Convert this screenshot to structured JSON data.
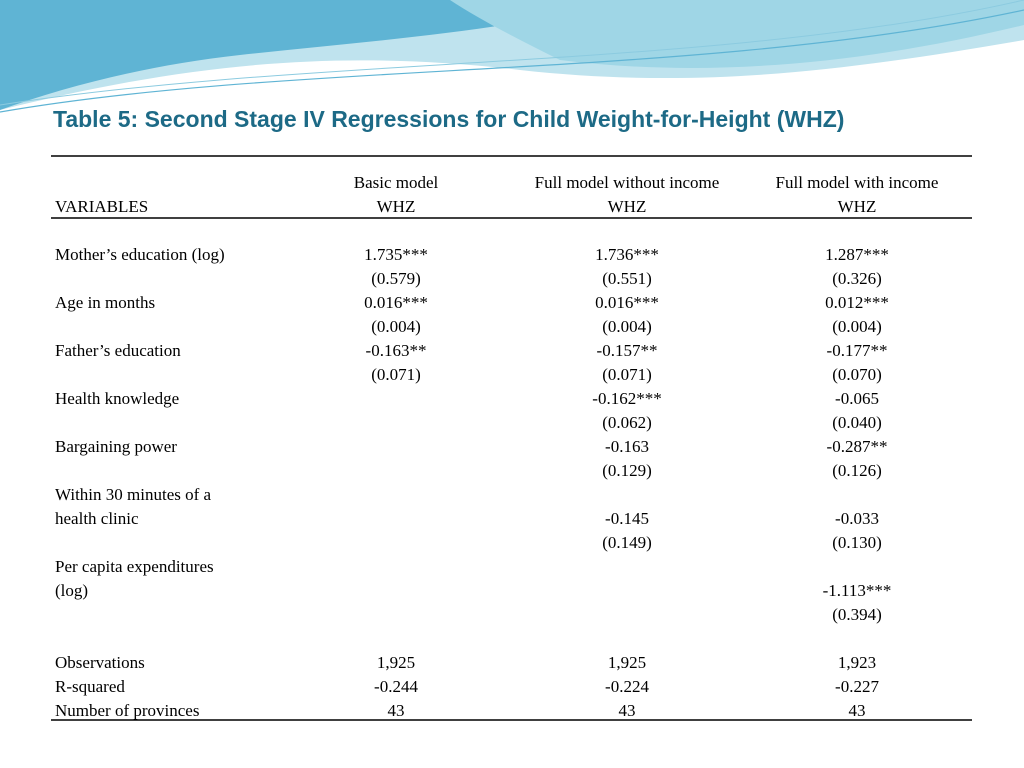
{
  "title": "Table 5: Second Stage IV Regressions for Child Weight-for-Height (WHZ)",
  "table": {
    "header": [
      [
        null,
        "Basic model",
        "Full model without income",
        "Full model with income"
      ],
      [
        "VARIABLES",
        "WHZ",
        "WHZ",
        "WHZ"
      ]
    ],
    "rows": [
      [
        "Mother’s education (log)",
        "1.735***",
        "1.736***",
        "1.287***"
      ],
      [
        null,
        "(0.579)",
        "(0.551)",
        "(0.326)"
      ],
      [
        "Age in months",
        "0.016***",
        "0.016***",
        "0.012***"
      ],
      [
        null,
        "(0.004)",
        "(0.004)",
        "(0.004)"
      ],
      [
        "Father’s education",
        "-0.163**",
        "-0.157**",
        "-0.177**"
      ],
      [
        null,
        "(0.071)",
        "(0.071)",
        "(0.070)"
      ],
      [
        "Health knowledge",
        null,
        "-0.162***",
        "-0.065"
      ],
      [
        null,
        null,
        "(0.062)",
        "(0.040)"
      ],
      [
        "Bargaining power",
        null,
        "-0.163",
        "-0.287**"
      ],
      [
        null,
        null,
        "(0.129)",
        "(0.126)"
      ],
      [
        "Within 30 minutes of a",
        null,
        null,
        null
      ],
      [
        "health clinic",
        null,
        "-0.145",
        "-0.033"
      ],
      [
        null,
        null,
        "(0.149)",
        "(0.130)"
      ],
      [
        "Per capita expenditures",
        null,
        null,
        null
      ],
      [
        "(log)",
        null,
        null,
        "-1.113***"
      ],
      [
        null,
        null,
        null,
        "(0.394)"
      ],
      [
        "Observations",
        "1,925",
        "1,925",
        "1,923"
      ],
      [
        "R-squared",
        "-0.244",
        "-0.224",
        "-0.227"
      ],
      [
        "Number of provinces",
        "43",
        "43",
        "43"
      ]
    ]
  }
}
